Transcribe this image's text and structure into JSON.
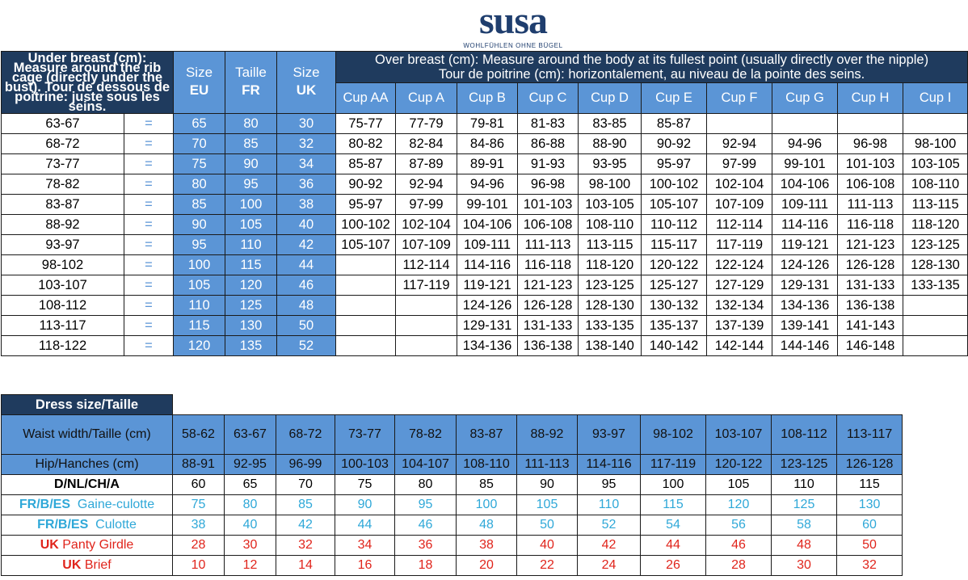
{
  "brand": {
    "name": "susa",
    "tagline": "WOHLFÜHLEN OHNE BÜGEL"
  },
  "size_chart": {
    "intro": "Under breast (cm): Measure around the rib cage (directly under the bust). Tour de dessous de poitrine: juste sous les seins.",
    "size_headers": [
      {
        "top": "Size",
        "bottom": "EU"
      },
      {
        "top": "Taille",
        "bottom": "FR"
      },
      {
        "top": "Size",
        "bottom": "UK"
      }
    ],
    "over_breast_line1": "Over breast (cm): Measure around the body at its fullest point (usually directly over the nipple)",
    "over_breast_line2": "Tour de poitrine (cm): horizontalement, au niveau de la pointe des seins.",
    "cups": [
      "Cup AA",
      "Cup A",
      "Cup B",
      "Cup C",
      "Cup D",
      "Cup E",
      "Cup F",
      "Cup G",
      "Cup H",
      "Cup I"
    ],
    "rows": [
      {
        "under": "63-67",
        "eq": "=",
        "eu": "65",
        "fr": "80",
        "uk": "30",
        "cups": [
          "75-77",
          "77-79",
          "79-81",
          "81-83",
          "83-85",
          "85-87",
          "",
          "",
          "",
          ""
        ]
      },
      {
        "under": "68-72",
        "eq": "=",
        "eu": "70",
        "fr": "85",
        "uk": "32",
        "cups": [
          "80-82",
          "82-84",
          "84-86",
          "86-88",
          "88-90",
          "90-92",
          "92-94",
          "94-96",
          "96-98",
          "98-100"
        ]
      },
      {
        "under": "73-77",
        "eq": "=",
        "eu": "75",
        "fr": "90",
        "uk": "34",
        "cups": [
          "85-87",
          "87-89",
          "89-91",
          "91-93",
          "93-95",
          "95-97",
          "97-99",
          "99-101",
          "101-103",
          "103-105"
        ]
      },
      {
        "under": "78-82",
        "eq": "=",
        "eu": "80",
        "fr": "95",
        "uk": "36",
        "cups": [
          "90-92",
          "92-94",
          "94-96",
          "96-98",
          "98-100",
          "100-102",
          "102-104",
          "104-106",
          "106-108",
          "108-110"
        ]
      },
      {
        "under": "83-87",
        "eq": "=",
        "eu": "85",
        "fr": "100",
        "uk": "38",
        "cups": [
          "95-97",
          "97-99",
          "99-101",
          "101-103",
          "103-105",
          "105-107",
          "107-109",
          "109-111",
          "111-113",
          "113-115"
        ]
      },
      {
        "under": "88-92",
        "eq": "=",
        "eu": "90",
        "fr": "105",
        "uk": "40",
        "cups": [
          "100-102",
          "102-104",
          "104-106",
          "106-108",
          "108-110",
          "110-112",
          "112-114",
          "114-116",
          "116-118",
          "118-120"
        ]
      },
      {
        "under": "93-97",
        "eq": "=",
        "eu": "95",
        "fr": "110",
        "uk": "42",
        "cups": [
          "105-107",
          "107-109",
          "109-111",
          "111-113",
          "113-115",
          "115-117",
          "117-119",
          "119-121",
          "121-123",
          "123-125"
        ]
      },
      {
        "under": "98-102",
        "eq": "=",
        "eu": "100",
        "fr": "115",
        "uk": "44",
        "cups": [
          "",
          "112-114",
          "114-116",
          "116-118",
          "118-120",
          "120-122",
          "122-124",
          "124-126",
          "126-128",
          "128-130"
        ]
      },
      {
        "under": "103-107",
        "eq": "=",
        "eu": "105",
        "fr": "120",
        "uk": "46",
        "cups": [
          "",
          "117-119",
          "119-121",
          "121-123",
          "123-125",
          "125-127",
          "127-129",
          "129-131",
          "131-133",
          "133-135"
        ]
      },
      {
        "under": "108-112",
        "eq": "=",
        "eu": "110",
        "fr": "125",
        "uk": "48",
        "cups": [
          "",
          "",
          "124-126",
          "126-128",
          "128-130",
          "130-132",
          "132-134",
          "134-136",
          "136-138",
          ""
        ]
      },
      {
        "under": "113-117",
        "eq": "=",
        "eu": "115",
        "fr": "130",
        "uk": "50",
        "cups": [
          "",
          "",
          "129-131",
          "131-133",
          "133-135",
          "135-137",
          "137-139",
          "139-141",
          "141-143",
          ""
        ]
      },
      {
        "under": "118-122",
        "eq": "=",
        "eu": "120",
        "fr": "135",
        "uk": "52",
        "cups": [
          "",
          "",
          "134-136",
          "136-138",
          "138-140",
          "140-142",
          "142-144",
          "144-146",
          "146-148",
          ""
        ]
      }
    ]
  },
  "dress_chart": {
    "title": "Dress size/Taille",
    "waist_label": "Waist width/Taille (cm)",
    "waist": [
      "58-62",
      "63-67",
      "68-72",
      "73-77",
      "78-82",
      "83-87",
      "88-92",
      "93-97",
      "98-102",
      "103-107",
      "108-112",
      "113-117"
    ],
    "hip_label": "Hip/Hanches (cm)",
    "hip": [
      "88-91",
      "92-95",
      "96-99",
      "100-103",
      "104-107",
      "108-110",
      "111-113",
      "114-116",
      "117-119",
      "120-122",
      "123-125",
      "126-128"
    ],
    "d_label": "D/NL/CH/A",
    "d": [
      "60",
      "65",
      "70",
      "75",
      "80",
      "85",
      "90",
      "95",
      "100",
      "105",
      "110",
      "115"
    ],
    "fr_code": "FR/B/ES",
    "gaine_label": "Gaine-culotte",
    "gaine": [
      "75",
      "80",
      "85",
      "90",
      "95",
      "100",
      "105",
      "110",
      "115",
      "120",
      "125",
      "130"
    ],
    "culotte_label": "Culotte",
    "culotte": [
      "38",
      "40",
      "42",
      "44",
      "46",
      "48",
      "50",
      "52",
      "54",
      "56",
      "58",
      "60"
    ],
    "uk_code": "UK",
    "panty_label": "Panty Girdle",
    "panty": [
      "28",
      "30",
      "32",
      "34",
      "36",
      "38",
      "40",
      "42",
      "44",
      "46",
      "48",
      "50"
    ],
    "brief_label": "Brief",
    "brief": [
      "10",
      "12",
      "14",
      "16",
      "18",
      "20",
      "22",
      "24",
      "26",
      "28",
      "30",
      "32"
    ]
  },
  "colors": {
    "navy": "#1f3b5e",
    "blue": "#5b95d6",
    "cyan": "#2fa8d8",
    "red": "#e0241b"
  }
}
